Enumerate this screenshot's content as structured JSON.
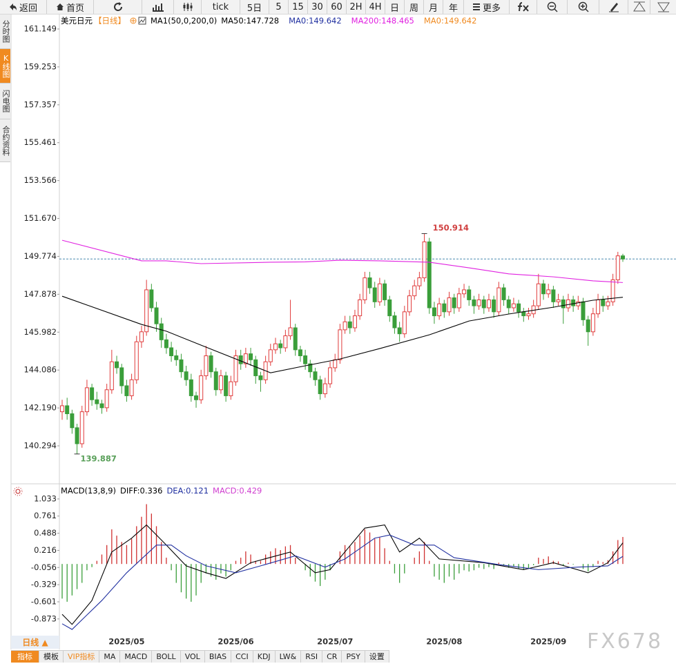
{
  "toolbar": [
    "返回",
    "首页",
    "tick",
    "5日",
    "5",
    "15",
    "30",
    "60",
    "2H",
    "4H",
    "日",
    "周",
    "月",
    "年",
    "更多"
  ],
  "side_tabs": [
    "分时图",
    "K线图",
    "闪电图",
    "合约资料"
  ],
  "chart_data": [
    {
      "type": "candlestick",
      "title": "美元日元",
      "period": "【日线】",
      "indicator": "MA1(50,0,200,0)",
      "up_color": "#e03a3a",
      "down_color": "#3a9e3a",
      "last_line_color": "#4a8ab0",
      "candles": [
        [
          142.0,
          142.6,
          141.6,
          142.3
        ],
        [
          142.3,
          142.7,
          141.6,
          141.9
        ],
        [
          141.9,
          142.1,
          140.9,
          141.2
        ],
        [
          141.2,
          141.4,
          139.887,
          140.4
        ],
        [
          140.4,
          142.3,
          140.2,
          142.0
        ],
        [
          142.0,
          143.6,
          141.8,
          143.2
        ],
        [
          143.2,
          143.4,
          142.3,
          142.6
        ],
        [
          142.6,
          143.0,
          142.1,
          142.4
        ],
        [
          142.4,
          142.6,
          141.9,
          142.2
        ],
        [
          142.2,
          143.4,
          142.0,
          143.1
        ],
        [
          143.1,
          145.1,
          142.9,
          144.5
        ],
        [
          144.5,
          144.8,
          143.9,
          144.2
        ],
        [
          144.2,
          144.4,
          142.9,
          143.3
        ],
        [
          143.3,
          143.6,
          142.5,
          142.8
        ],
        [
          142.8,
          143.9,
          142.6,
          143.6
        ],
        [
          143.6,
          145.8,
          143.4,
          145.5
        ],
        [
          145.5,
          146.3,
          145.2,
          146.0
        ],
        [
          146.0,
          148.6,
          145.8,
          148.1
        ],
        [
          148.1,
          148.4,
          147.0,
          147.2
        ],
        [
          147.2,
          147.5,
          146.0,
          146.4
        ],
        [
          146.4,
          146.7,
          145.2,
          145.6
        ],
        [
          145.6,
          145.9,
          144.9,
          145.2
        ],
        [
          145.2,
          145.5,
          144.5,
          144.8
        ],
        [
          144.8,
          145.1,
          144.3,
          144.6
        ],
        [
          144.6,
          144.9,
          143.7,
          144.0
        ],
        [
          144.0,
          144.3,
          143.3,
          143.6
        ],
        [
          143.6,
          143.9,
          142.5,
          142.8
        ],
        [
          142.8,
          143.0,
          142.2,
          142.6
        ],
        [
          142.6,
          144.1,
          142.4,
          143.8
        ],
        [
          143.8,
          145.3,
          143.6,
          144.8
        ],
        [
          144.8,
          145.0,
          143.7,
          144.0
        ],
        [
          144.0,
          144.2,
          142.8,
          143.1
        ],
        [
          143.1,
          144.1,
          142.9,
          143.8
        ],
        [
          143.8,
          144.0,
          142.5,
          142.8
        ],
        [
          142.8,
          143.8,
          142.6,
          143.5
        ],
        [
          143.5,
          145.1,
          143.3,
          144.8
        ],
        [
          144.8,
          145.1,
          144.1,
          144.4
        ],
        [
          144.4,
          145.2,
          144.2,
          144.9
        ],
        [
          144.9,
          145.2,
          144.3,
          144.6
        ],
        [
          144.6,
          144.8,
          143.4,
          143.8
        ],
        [
          143.8,
          144.0,
          143.0,
          143.6
        ],
        [
          143.6,
          144.8,
          143.4,
          144.5
        ],
        [
          144.5,
          145.4,
          144.3,
          145.1
        ],
        [
          145.1,
          145.7,
          144.9,
          145.4
        ],
        [
          145.4,
          145.6,
          144.9,
          145.2
        ],
        [
          145.2,
          146.1,
          145.0,
          145.8
        ],
        [
          145.8,
          147.6,
          145.6,
          146.2
        ],
        [
          146.2,
          146.4,
          144.8,
          145.1
        ],
        [
          145.1,
          145.3,
          144.5,
          144.8
        ],
        [
          144.8,
          145.1,
          144.1,
          144.4
        ],
        [
          144.4,
          144.6,
          143.7,
          144.0
        ],
        [
          144.0,
          144.2,
          143.3,
          143.6
        ],
        [
          143.6,
          143.8,
          142.6,
          142.9
        ],
        [
          142.9,
          143.7,
          142.7,
          143.4
        ],
        [
          143.4,
          144.5,
          143.2,
          144.2
        ],
        [
          144.2,
          144.9,
          144.0,
          144.6
        ],
        [
          144.6,
          146.4,
          144.4,
          146.1
        ],
        [
          146.1,
          146.8,
          145.9,
          146.5
        ],
        [
          146.5,
          146.8,
          145.9,
          146.2
        ],
        [
          146.2,
          147.1,
          146.0,
          146.8
        ],
        [
          146.8,
          147.9,
          146.6,
          147.6
        ],
        [
          147.6,
          149.0,
          147.4,
          148.7
        ],
        [
          148.7,
          149.0,
          147.9,
          148.2
        ],
        [
          148.2,
          148.5,
          147.2,
          147.5
        ],
        [
          147.5,
          148.7,
          147.3,
          148.4
        ],
        [
          148.4,
          148.6,
          147.3,
          147.6
        ],
        [
          147.6,
          147.8,
          146.5,
          146.8
        ],
        [
          146.8,
          147.0,
          145.9,
          146.2
        ],
        [
          146.2,
          146.5,
          145.5,
          145.9
        ],
        [
          145.9,
          147.3,
          145.7,
          147.0
        ],
        [
          147.0,
          148.1,
          146.8,
          147.8
        ],
        [
          147.8,
          148.6,
          147.6,
          148.3
        ],
        [
          148.3,
          149.0,
          148.1,
          148.7
        ],
        [
          148.7,
          150.914,
          148.5,
          150.5
        ],
        [
          150.5,
          150.7,
          146.9,
          147.2
        ],
        [
          147.2,
          147.5,
          146.4,
          146.8
        ],
        [
          146.8,
          147.7,
          146.6,
          147.4
        ],
        [
          147.4,
          147.6,
          146.7,
          147.0
        ],
        [
          147.0,
          148.0,
          146.8,
          147.7
        ],
        [
          147.7,
          147.9,
          146.9,
          147.2
        ],
        [
          147.2,
          148.2,
          147.0,
          147.9
        ],
        [
          147.9,
          148.4,
          147.7,
          148.1
        ],
        [
          148.1,
          148.3,
          147.3,
          147.6
        ],
        [
          147.6,
          147.8,
          146.9,
          147.3
        ],
        [
          147.3,
          147.9,
          147.1,
          147.6
        ],
        [
          147.6,
          147.8,
          146.9,
          147.2
        ],
        [
          147.2,
          147.9,
          147.0,
          147.6
        ],
        [
          147.6,
          147.8,
          146.7,
          147.0
        ],
        [
          147.0,
          148.5,
          146.8,
          148.2
        ],
        [
          148.2,
          148.4,
          147.3,
          147.6
        ],
        [
          147.6,
          147.8,
          146.9,
          147.2
        ],
        [
          147.2,
          147.7,
          147.0,
          147.4
        ],
        [
          147.4,
          147.6,
          146.7,
          147.0
        ],
        [
          147.0,
          147.2,
          146.5,
          146.8
        ],
        [
          146.8,
          147.2,
          146.6,
          146.9
        ],
        [
          146.9,
          147.6,
          146.7,
          147.3
        ],
        [
          147.3,
          148.9,
          147.1,
          148.4
        ],
        [
          148.4,
          148.6,
          147.6,
          147.9
        ],
        [
          147.9,
          148.4,
          147.7,
          148.1
        ],
        [
          148.1,
          148.3,
          147.2,
          147.5
        ],
        [
          147.5,
          147.9,
          147.3,
          147.6
        ],
        [
          147.6,
          147.8,
          146.4,
          147.2
        ],
        [
          147.2,
          147.9,
          147.0,
          147.6
        ],
        [
          147.6,
          147.8,
          147.0,
          147.3
        ],
        [
          147.3,
          147.8,
          147.1,
          147.5
        ],
        [
          147.5,
          147.7,
          146.3,
          146.6
        ],
        [
          146.6,
          146.8,
          145.3,
          146.0
        ],
        [
          146.0,
          147.2,
          145.8,
          146.9
        ],
        [
          146.9,
          147.9,
          146.7,
          147.6
        ],
        [
          147.6,
          147.8,
          147.0,
          147.3
        ],
        [
          147.3,
          147.8,
          147.1,
          147.5
        ],
        [
          147.5,
          148.9,
          147.3,
          148.6
        ],
        [
          148.6,
          150.0,
          148.4,
          149.8
        ],
        [
          149.8,
          149.9,
          149.5,
          149.642
        ]
      ],
      "series": [
        {
          "name": "MA50:",
          "color": "#000000",
          "x": [
            0,
            16,
            21,
            28,
            42,
            49,
            56,
            64,
            74,
            82,
            90,
            99,
            107,
            113
          ],
          "values": [
            147.78,
            146.37,
            146.03,
            145.33,
            143.95,
            144.3,
            144.64,
            145.16,
            145.85,
            146.54,
            146.89,
            147.23,
            147.58,
            147.728
          ]
        },
        {
          "name": "MA200:",
          "color": "#e020e0",
          "x": [
            0,
            16,
            21,
            28,
            42,
            49,
            56,
            64,
            74,
            82,
            90,
            99,
            107,
            113
          ],
          "values": [
            150.58,
            149.55,
            149.55,
            149.41,
            149.48,
            149.5,
            149.58,
            149.55,
            149.48,
            149.2,
            148.9,
            148.75,
            148.55,
            148.465
          ]
        }
      ],
      "ma0": [
        {
          "name": "MA0:",
          "color": "#2030a0"
        },
        {
          "name": "MA0:",
          "color": "#f08a20"
        }
      ],
      "ylim": [
        138.43,
        161.84
      ],
      "yticks": [
        161.149,
        159.253,
        157.357,
        155.461,
        153.566,
        {
          "value": 151.67,
          "label": "151.670"
        },
        149.774,
        147.878,
        145.982,
        144.086,
        {
          "value": 142.19,
          "label": "142.190"
        },
        140.294
      ],
      "xticks": [
        {
          "value": 13,
          "label": "2025/05"
        },
        {
          "value": 35,
          "label": "2025/06"
        },
        {
          "value": 55,
          "label": "2025/07"
        },
        {
          "value": 77,
          "label": "2025/08"
        },
        {
          "value": 98,
          "label": "2025/09"
        }
      ]
    },
    {
      "type": "macd",
      "title": "MACD(13,8,9)",
      "up_color": "#d03030",
      "down_color": "#3a9e3a",
      "histogram": {
        "name": "MACD:",
        "color": "#d040d0",
        "values": [
          -0.55,
          -0.6,
          -0.5,
          -0.4,
          -0.3,
          -0.1,
          -0.05,
          0.05,
          0.15,
          0.3,
          0.55,
          0.45,
          0.35,
          0.3,
          0.4,
          0.6,
          0.75,
          0.95,
          0.8,
          0.6,
          0.35,
          0.1,
          -0.1,
          -0.3,
          -0.45,
          -0.55,
          -0.6,
          -0.5,
          -0.3,
          -0.15,
          -0.2,
          -0.25,
          -0.15,
          -0.2,
          -0.1,
          0.05,
          0.1,
          0.2,
          0.15,
          0.05,
          0.05,
          0.15,
          0.2,
          0.25,
          0.22,
          0.28,
          0.3,
          0.1,
          0.0,
          -0.1,
          -0.2,
          -0.28,
          -0.35,
          -0.25,
          -0.1,
          0.0,
          0.2,
          0.3,
          0.28,
          0.35,
          0.45,
          0.55,
          0.5,
          0.4,
          0.42,
          0.25,
          0.05,
          -0.15,
          -0.3,
          -0.15,
          0.0,
          0.1,
          0.2,
          0.35,
          0.05,
          -0.2,
          -0.25,
          -0.3,
          -0.2,
          -0.25,
          -0.15,
          -0.1,
          -0.12,
          -0.1,
          -0.06,
          -0.08,
          -0.05,
          -0.08,
          0.02,
          -0.02,
          -0.06,
          -0.04,
          -0.07,
          -0.09,
          -0.08,
          -0.02,
          0.1,
          0.08,
          0.12,
          0.05,
          0.04,
          -0.03,
          0.02,
          -0.01,
          0.0,
          -0.08,
          -0.12,
          -0.05,
          0.05,
          0.03,
          0.06,
          0.2,
          0.38,
          0.429
        ]
      },
      "series": [
        {
          "name": "DIFF:",
          "color": "#000000",
          "x": [
            0,
            2,
            6,
            10,
            14,
            17,
            21,
            25,
            29,
            33,
            38,
            46,
            51,
            54,
            61,
            65,
            68,
            72,
            76,
            85,
            93,
            99,
            106,
            110,
            113
          ],
          "values": [
            -0.8,
            -0.96,
            -0.58,
            0.19,
            0.41,
            0.62,
            0.3,
            -0.03,
            -0.14,
            -0.23,
            0.02,
            0.19,
            -0.14,
            -0.09,
            0.57,
            0.62,
            0.19,
            0.41,
            0.08,
            0.02,
            -0.09,
            0.02,
            -0.14,
            0.02,
            0.336
          ]
        },
        {
          "name": "DEA:",
          "color": "#2030a0",
          "x": [
            0,
            2,
            8,
            13,
            19,
            22,
            25,
            29,
            35,
            40,
            47,
            53,
            57,
            63,
            66,
            71,
            75,
            79,
            88,
            96,
            104,
            110,
            113
          ],
          "values": [
            -0.95,
            -1.04,
            -0.58,
            -0.14,
            0.3,
            0.3,
            0.13,
            -0.03,
            -0.14,
            -0.03,
            0.13,
            -0.05,
            0.08,
            0.41,
            0.46,
            0.3,
            0.3,
            0.1,
            -0.01,
            -0.09,
            -0.05,
            -0.03,
            0.121
          ]
        }
      ],
      "ylim": [
        -1.215,
        1.12
      ],
      "yticks": [
        1.033,
        0.761,
        0.488,
        0.216,
        -0.056,
        -0.329,
        -0.601,
        -0.873
      ]
    }
  ],
  "bottom": {
    "period_button": "日线 ▲",
    "tabs": [
      "指标",
      "模板",
      "VIP指标",
      "MA",
      "MACD",
      "BOLL",
      "VOL",
      "BIAS",
      "CCI",
      "KDJ",
      "LW&",
      "RSI",
      "CR",
      "PSY",
      "设置"
    ]
  },
  "watermark": "FX678"
}
